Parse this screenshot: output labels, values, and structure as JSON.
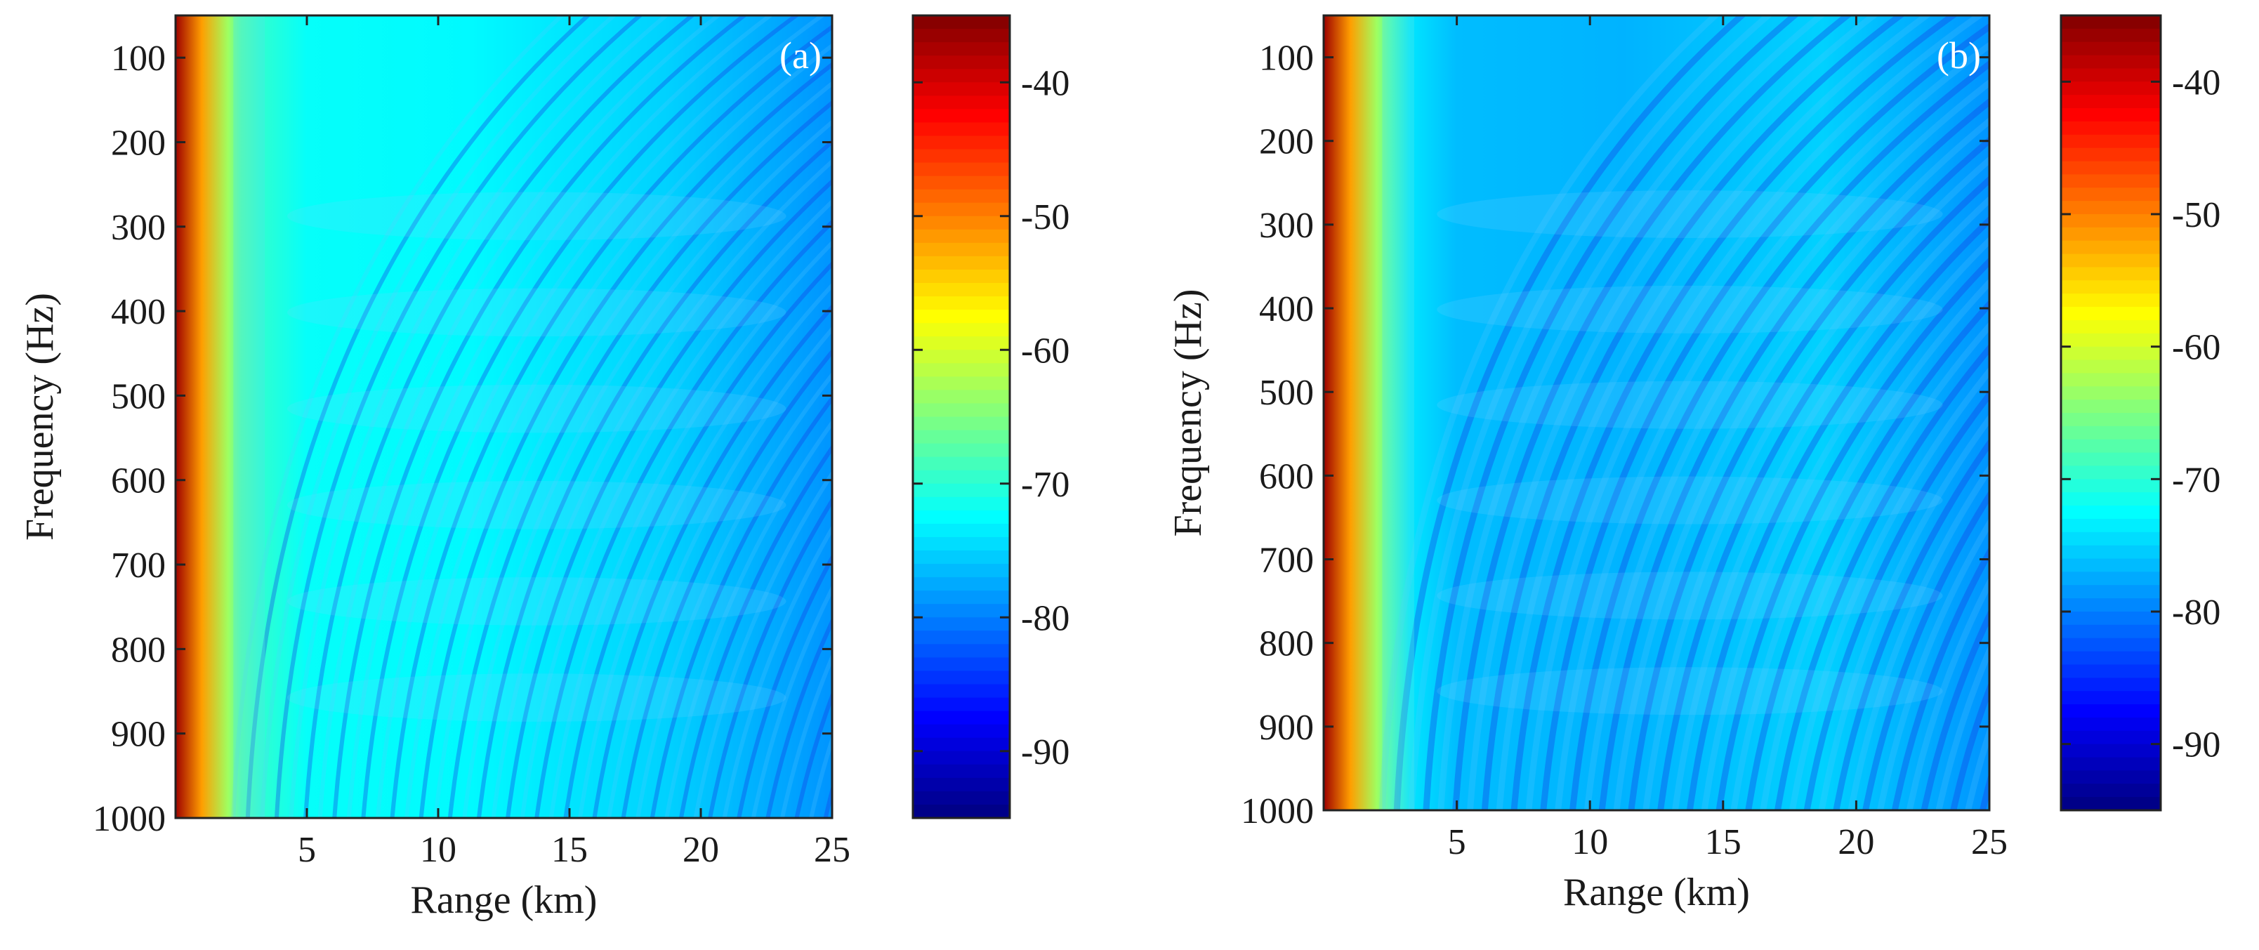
{
  "chart_data": [
    {
      "type": "heatmap",
      "panel_label": "(a)",
      "xlabel": "Range (km)",
      "ylabel": "Frequency (Hz)",
      "xlim": [
        0,
        25
      ],
      "ylim": [
        50,
        1000
      ],
      "y_reversed": true,
      "xticks": [
        5,
        10,
        15,
        20,
        25
      ],
      "yticks": [
        100,
        200,
        300,
        400,
        500,
        600,
        700,
        800,
        900,
        1000
      ],
      "colorbar": {
        "clim": [
          -95,
          -35
        ],
        "ticks": [
          -40,
          -50,
          -60,
          -70,
          -80,
          -90
        ]
      }
    },
    {
      "type": "heatmap",
      "panel_label": "(b)",
      "xlabel": "Range (km)",
      "ylabel": "Frequency (Hz)",
      "xlim": [
        0,
        25
      ],
      "ylim": [
        50,
        1000
      ],
      "y_reversed": true,
      "xticks": [
        5,
        10,
        15,
        20,
        25
      ],
      "yticks": [
        100,
        200,
        300,
        400,
        500,
        600,
        700,
        800,
        900,
        1000
      ],
      "colorbar": {
        "clim": [
          -95,
          -35
        ],
        "ticks": [
          -40,
          -50,
          -60,
          -70,
          -80,
          -90
        ]
      }
    }
  ]
}
